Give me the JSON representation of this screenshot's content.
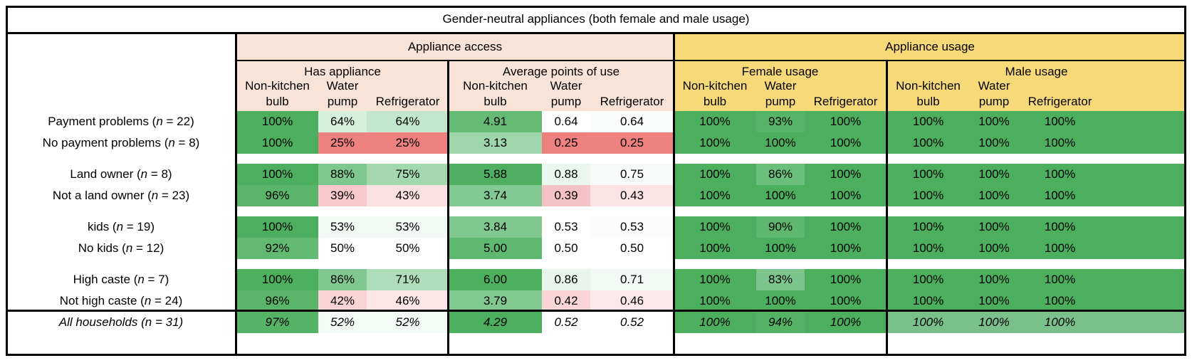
{
  "title": "Gender-neutral appliances (both female and male usage)",
  "groups": {
    "access": "Appliance access",
    "usage": "Appliance usage"
  },
  "subgroups": {
    "has_appliance": "Has appliance",
    "avg_points": "Average points of use",
    "female_usage": "Female usage",
    "male_usage": "Male usage"
  },
  "columns": [
    {
      "l1": "Non-kitchen",
      "l2": "bulb"
    },
    {
      "l1": "Water",
      "l2": "pump"
    },
    {
      "l1": "",
      "l2": "Refrigerator"
    }
  ],
  "n_label": "n",
  "colors": {
    "access_header": "#f9e3d7",
    "usage_header": "#f8d977",
    "green_dark": "#4caf5f",
    "red": "#ee8080"
  },
  "rows": [
    {
      "label": "Payment problems",
      "n": "22",
      "values": [
        "100%",
        "64%",
        "64%",
        "4.91",
        "0.64",
        "0.64",
        "100%",
        "93%",
        "100%",
        "100%",
        "100%",
        "100%"
      ],
      "colors": [
        "#4baf5e",
        "#d5efdd",
        "#c2e7cc",
        "#63bb74",
        "#ffffff",
        "#f9fbfa",
        "#4baf5e",
        "#55b466",
        "#4baf5e",
        "#4baf5e",
        "#4baf5e",
        "#4baf5e"
      ]
    },
    {
      "label": "No payment problems",
      "n": "8",
      "values": [
        "100%",
        "25%",
        "25%",
        "3.13",
        "0.25",
        "0.25",
        "100%",
        "100%",
        "100%",
        "100%",
        "100%",
        "100%"
      ],
      "colors": [
        "#4baf5e",
        "#ee8080",
        "#ee8080",
        "#9dd6aa",
        "#ee8080",
        "#ee8080",
        "#4baf5e",
        "#4baf5e",
        "#4baf5e",
        "#4baf5e",
        "#4baf5e",
        "#4baf5e"
      ]
    },
    {
      "spacer": true
    },
    {
      "label": "Land owner",
      "n": "8",
      "values": [
        "100%",
        "88%",
        "75%",
        "5.88",
        "0.88",
        "0.75",
        "100%",
        "86%",
        "100%",
        "100%",
        "100%",
        "100%"
      ],
      "colors": [
        "#4baf5e",
        "#7ec78e",
        "#a3d8ae",
        "#4faf61",
        "#eaf6ee",
        "#f6f9f7",
        "#4baf5e",
        "#6bbe7b",
        "#4baf5e",
        "#4baf5e",
        "#4baf5e",
        "#4baf5e"
      ]
    },
    {
      "label": "Not a land owner",
      "n": "23",
      "values": [
        "96%",
        "39%",
        "43%",
        "3.74",
        "0.39",
        "0.43",
        "100%",
        "100%",
        "100%",
        "100%",
        "100%",
        "100%"
      ],
      "colors": [
        "#58b569",
        "#f8c8cb",
        "#fbe0e2",
        "#83c993",
        "#f5c3c6",
        "#fbe2e4",
        "#4baf5e",
        "#4baf5e",
        "#4baf5e",
        "#4baf5e",
        "#4baf5e",
        "#4baf5e"
      ]
    },
    {
      "spacer": true
    },
    {
      "label": "kids",
      "n": "19",
      "values": [
        "100%",
        "53%",
        "53%",
        "3.84",
        "0.53",
        "0.53",
        "100%",
        "90%",
        "100%",
        "100%",
        "100%",
        "100%"
      ],
      "colors": [
        "#4baf5e",
        "#f2f9f4",
        "#f2f9f4",
        "#80c890",
        "#ffffff",
        "#fbfcfb",
        "#4baf5e",
        "#5db86e",
        "#4baf5e",
        "#4baf5e",
        "#4baf5e",
        "#4baf5e"
      ]
    },
    {
      "label": "No kids",
      "n": "12",
      "values": [
        "92%",
        "50%",
        "50%",
        "5.00",
        "0.50",
        "0.50",
        "100%",
        "100%",
        "100%",
        "100%",
        "100%",
        "100%"
      ],
      "colors": [
        "#62ba72",
        "#ffffff",
        "#ffffff",
        "#5fb870",
        "#ffffff",
        "#ffffff",
        "#4baf5e",
        "#4baf5e",
        "#4baf5e",
        "#4baf5e",
        "#4baf5e",
        "#4baf5e"
      ]
    },
    {
      "spacer": true
    },
    {
      "label": "High caste",
      "n": "7",
      "values": [
        "100%",
        "86%",
        "71%",
        "6.00",
        "0.86",
        "0.71",
        "100%",
        "83%",
        "100%",
        "100%",
        "100%",
        "100%"
      ],
      "colors": [
        "#4baf5e",
        "#80c890",
        "#afdcb9",
        "#4baf5e",
        "#e9f5ec",
        "#f2f8f4",
        "#4baf5e",
        "#7cc68d",
        "#4baf5e",
        "#4baf5e",
        "#4baf5e",
        "#4baf5e"
      ]
    },
    {
      "label": "Not high caste",
      "n": "24",
      "values": [
        "96%",
        "42%",
        "46%",
        "3.79",
        "0.42",
        "0.46",
        "100%",
        "100%",
        "100%",
        "100%",
        "100%",
        "100%"
      ],
      "colors": [
        "#58b569",
        "#f9d4d7",
        "#fce6e8",
        "#81c891",
        "#f9d5d8",
        "#fde9eb",
        "#4baf5e",
        "#4baf5e",
        "#4baf5e",
        "#4baf5e",
        "#4baf5e",
        "#4baf5e"
      ]
    },
    {
      "label": "All households",
      "n": "31",
      "italic": true,
      "values": [
        "97%",
        "52%",
        "52%",
        "4.29",
        "0.52",
        "0.52",
        "100%",
        "94%",
        "100%",
        "100%",
        "100%",
        "100%"
      ],
      "colors": [
        "#55b366",
        "#f4faf6",
        "#f4faf6",
        "#4baf5e",
        "#ffffff",
        "#ffffff",
        "#4baf5e",
        "#54b365",
        "#4baf5e",
        "#7ac08b",
        "#7ac08b",
        "#7ac08b"
      ]
    }
  ]
}
